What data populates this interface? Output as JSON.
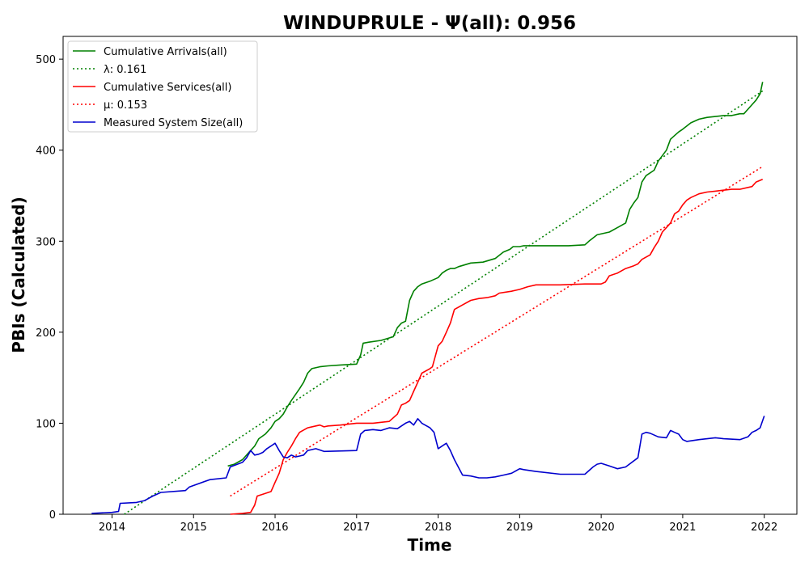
{
  "chart_data": {
    "type": "line",
    "title": "WINDUPRULE -  Ψ(all): 0.956",
    "xlabel": "Time",
    "ylabel": "PBIs (Calculated)",
    "xlim": [
      2013.4,
      2022.4
    ],
    "ylim": [
      0,
      525
    ],
    "x_ticks": [
      2014,
      2015,
      2016,
      2017,
      2018,
      2019,
      2020,
      2021,
      2022
    ],
    "y_ticks": [
      0,
      100,
      200,
      300,
      400,
      500
    ],
    "legend_position": "upper-left",
    "grid": false,
    "series": [
      {
        "name": "Cumulative Arrivals(all)",
        "color": "#008000",
        "style": "solid",
        "x": [
          2015.42,
          2015.5,
          2015.6,
          2015.65,
          2015.7,
          2015.75,
          2015.8,
          2015.88,
          2015.95,
          2016.0,
          2016.05,
          2016.1,
          2016.15,
          2016.2,
          2016.3,
          2016.35,
          2016.4,
          2016.45,
          2016.55,
          2016.65,
          2016.8,
          2017.0,
          2017.05,
          2017.08,
          2017.15,
          2017.3,
          2017.45,
          2017.5,
          2017.55,
          2017.6,
          2017.65,
          2017.7,
          2017.75,
          2017.8,
          2017.9,
          2018.0,
          2018.05,
          2018.1,
          2018.15,
          2018.2,
          2018.25,
          2018.4,
          2018.55,
          2018.7,
          2018.8,
          2018.88,
          2018.92,
          2019.0,
          2019.05,
          2019.2,
          2019.4,
          2019.6,
          2019.8,
          2019.85,
          2019.95,
          2020.1,
          2020.2,
          2020.3,
          2020.35,
          2020.4,
          2020.45,
          2020.5,
          2020.55,
          2020.65,
          2020.7,
          2020.8,
          2020.85,
          2020.9,
          2020.95,
          2021.0,
          2021.1,
          2021.2,
          2021.3,
          2021.4,
          2021.5,
          2021.6,
          2021.7,
          2021.75,
          2021.8,
          2021.85,
          2021.9,
          2021.95,
          2021.98
        ],
        "y": [
          53,
          55,
          60,
          65,
          70,
          75,
          83,
          88,
          95,
          102,
          105,
          110,
          118,
          125,
          138,
          145,
          155,
          160,
          162,
          163,
          164,
          165,
          175,
          188,
          189,
          191,
          195,
          205,
          210,
          212,
          235,
          245,
          250,
          253,
          256,
          260,
          265,
          268,
          270,
          270,
          272,
          276,
          277,
          281,
          288,
          291,
          294,
          294,
          295,
          295,
          295,
          295,
          296,
          300,
          307,
          310,
          315,
          320,
          335,
          342,
          348,
          365,
          372,
          378,
          388,
          400,
          412,
          416,
          420,
          423,
          430,
          434,
          436,
          437,
          438,
          438,
          440,
          440,
          445,
          450,
          455,
          462,
          475
        ]
      },
      {
        "name": "λ: 0.161",
        "color": "#008000",
        "style": "dotted",
        "x": [
          2014.15,
          2021.98
        ],
        "y": [
          0,
          465
        ]
      },
      {
        "name": "Cumulative Services(all)",
        "color": "#ff0000",
        "style": "solid",
        "x": [
          2015.45,
          2015.6,
          2015.7,
          2015.75,
          2015.78,
          2015.85,
          2015.95,
          2016.0,
          2016.05,
          2016.1,
          2016.15,
          2016.2,
          2016.25,
          2016.3,
          2016.4,
          2016.5,
          2016.55,
          2016.6,
          2016.65,
          2016.8,
          2017.0,
          2017.1,
          2017.2,
          2017.3,
          2017.4,
          2017.5,
          2017.55,
          2017.6,
          2017.65,
          2017.7,
          2017.75,
          2017.8,
          2017.9,
          2017.93,
          2018.0,
          2018.05,
          2018.1,
          2018.15,
          2018.2,
          2018.3,
          2018.4,
          2018.5,
          2018.6,
          2018.7,
          2018.75,
          2018.9,
          2019.0,
          2019.1,
          2019.2,
          2019.5,
          2019.8,
          2020.0,
          2020.05,
          2020.1,
          2020.2,
          2020.3,
          2020.4,
          2020.45,
          2020.5,
          2020.6,
          2020.65,
          2020.7,
          2020.75,
          2020.8,
          2020.85,
          2020.9,
          2020.95,
          2021.0,
          2021.05,
          2021.1,
          2021.2,
          2021.3,
          2021.4,
          2021.5,
          2021.6,
          2021.7,
          2021.85,
          2021.9,
          2021.98
        ],
        "y": [
          0,
          1,
          2,
          10,
          20,
          22,
          25,
          35,
          45,
          60,
          68,
          75,
          83,
          90,
          95,
          97,
          98,
          96,
          97,
          98,
          100,
          100,
          100,
          101,
          102,
          110,
          120,
          122,
          125,
          135,
          145,
          155,
          160,
          162,
          185,
          190,
          200,
          210,
          225,
          230,
          235,
          237,
          238,
          240,
          243,
          245,
          247,
          250,
          252,
          252,
          253,
          253,
          255,
          262,
          265,
          270,
          273,
          275,
          280,
          285,
          293,
          300,
          310,
          315,
          320,
          330,
          333,
          340,
          345,
          348,
          352,
          354,
          355,
          356,
          357,
          357,
          360,
          365,
          368
        ]
      },
      {
        "name": "μ: 0.153",
        "color": "#ff0000",
        "style": "dotted",
        "x": [
          2015.45,
          2021.98
        ],
        "y": [
          20,
          382
        ]
      },
      {
        "name": "Measured System Size(all)",
        "color": "#0000cd",
        "style": "solid",
        "x": [
          2013.75,
          2014.0,
          2014.08,
          2014.1,
          2014.3,
          2014.4,
          2014.5,
          2014.6,
          2014.9,
          2014.95,
          2015.2,
          2015.4,
          2015.45,
          2015.6,
          2015.65,
          2015.7,
          2015.75,
          2015.8,
          2015.85,
          2015.9,
          2015.95,
          2016.0,
          2016.05,
          2016.1,
          2016.15,
          2016.2,
          2016.25,
          2016.3,
          2016.35,
          2016.4,
          2016.5,
          2016.6,
          2017.0,
          2017.05,
          2017.1,
          2017.2,
          2017.3,
          2017.4,
          2017.5,
          2017.55,
          2017.6,
          2017.65,
          2017.7,
          2017.75,
          2017.8,
          2017.9,
          2017.95,
          2018.0,
          2018.05,
          2018.1,
          2018.15,
          2018.2,
          2018.3,
          2018.4,
          2018.5,
          2018.6,
          2018.7,
          2018.8,
          2018.9,
          2019.0,
          2019.05,
          2019.2,
          2019.5,
          2019.8,
          2019.9,
          2019.95,
          2020.0,
          2020.1,
          2020.2,
          2020.3,
          2020.45,
          2020.5,
          2020.55,
          2020.6,
          2020.7,
          2020.8,
          2020.85,
          2020.9,
          2020.95,
          2021.0,
          2021.05,
          2021.2,
          2021.4,
          2021.5,
          2021.7,
          2021.8,
          2021.85,
          2021.9,
          2021.95,
          2022.0
        ],
        "y": [
          1,
          2,
          3,
          12,
          13,
          15,
          20,
          24,
          26,
          30,
          38,
          40,
          52,
          57,
          62,
          70,
          65,
          66,
          68,
          72,
          75,
          78,
          70,
          63,
          62,
          65,
          63,
          64,
          65,
          70,
          72,
          69,
          70,
          88,
          92,
          93,
          92,
          95,
          94,
          97,
          100,
          102,
          98,
          105,
          100,
          95,
          90,
          72,
          75,
          78,
          70,
          60,
          43,
          42,
          40,
          40,
          41,
          43,
          45,
          50,
          49,
          47,
          44,
          44,
          52,
          55,
          56,
          53,
          50,
          52,
          62,
          88,
          90,
          89,
          85,
          84,
          92,
          90,
          88,
          82,
          80,
          82,
          84,
          83,
          82,
          85,
          90,
          92,
          95,
          108
        ]
      }
    ]
  }
}
